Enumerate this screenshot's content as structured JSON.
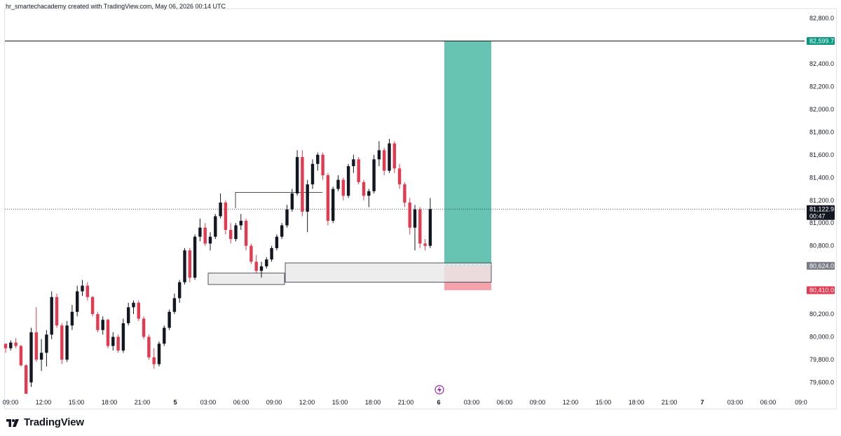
{
  "header": {
    "caption": "hr_smartechacademy created with TradingView.com, May 06, 2026 00:14 UTC"
  },
  "brand": {
    "name": "TradingView",
    "icon": "tradingview-logo-icon"
  },
  "icons": {
    "event_marker": "lightning-icon"
  },
  "colors": {
    "bull_body": "#131722",
    "bear_body": "#e53950",
    "target_zone": "#68c4b2",
    "stop_zone": "#f4a3ab",
    "target_tag": "#089981",
    "stop_tag": "#e53950",
    "entry_tag": "#787b86",
    "last_tag": "#131722",
    "box_fill": "#e8e8e8",
    "box_stroke": "#2a2e39"
  },
  "chart_data": {
    "type": "candlestick",
    "title": "",
    "xlabel": "",
    "ylabel": "",
    "ylim": [
      79480,
      82880
    ],
    "y_ticks": [
      "82,800.0",
      "82,400.0",
      "82,200.0",
      "82,000.0",
      "81,800.0",
      "81,600.0",
      "81,400.0",
      "81,200.0",
      "81,000.0",
      "80,800.0",
      "80,200.0",
      "80,000.0",
      "79,800.0",
      "79,600.0"
    ],
    "x_ticks": [
      "09:00",
      "12:00",
      "15:00",
      "18:00",
      "21:00",
      "5",
      "03:00",
      "06:00",
      "09:00",
      "12:00",
      "15:00",
      "18:00",
      "21:00",
      "6",
      "03:00",
      "06:00",
      "09:00",
      "12:00",
      "15:00",
      "18:00",
      "21:00",
      "7",
      "03:00",
      "06:00",
      "09:0"
    ],
    "price_tags": {
      "target": "82,599.7",
      "last_price": "81,122.9",
      "countdown": "00:47",
      "entry": "80,624.0",
      "stop": "80,410.0"
    },
    "levels": {
      "target": 82599.7,
      "last": 81122.9,
      "entry": 80624.0,
      "stop": 80410.0
    },
    "zones": [
      {
        "name": "demand-zone-1",
        "top": 80560,
        "bottom": 80460
      },
      {
        "name": "demand-zone-2",
        "top": 80650,
        "bottom": 80480
      }
    ],
    "resistance_line": 81270,
    "candles": [
      [
        79940,
        79920,
        79860,
        79900
      ],
      [
        79900,
        79970,
        79880,
        79950
      ],
      [
        79950,
        79990,
        79900,
        79920
      ],
      [
        79920,
        79930,
        79740,
        79750
      ],
      [
        79750,
        79760,
        79500,
        79500
      ],
      [
        79600,
        80080,
        79560,
        80040
      ],
      [
        80040,
        80260,
        79780,
        79800
      ],
      [
        79800,
        79980,
        79700,
        79860
      ],
      [
        79860,
        80060,
        79740,
        80020
      ],
      [
        80020,
        80400,
        79980,
        80350
      ],
      [
        80350,
        80380,
        80080,
        80100
      ],
      [
        80100,
        80120,
        79760,
        79800
      ],
      [
        79800,
        80140,
        79780,
        80100
      ],
      [
        80100,
        80280,
        80060,
        80220
      ],
      [
        80220,
        80450,
        80180,
        80400
      ],
      [
        80400,
        80500,
        80360,
        80450
      ],
      [
        80450,
        80480,
        80320,
        80350
      ],
      [
        80350,
        80360,
        80180,
        80200
      ],
      [
        80200,
        80220,
        80040,
        80060
      ],
      [
        80060,
        80180,
        80020,
        80150
      ],
      [
        80150,
        80160,
        79900,
        79920
      ],
      [
        79920,
        80040,
        79880,
        80000
      ],
      [
        80000,
        80020,
        79860,
        79880
      ],
      [
        79880,
        80160,
        79860,
        80120
      ],
      [
        80120,
        80300,
        80100,
        80260
      ],
      [
        80260,
        80320,
        80200,
        80300
      ],
      [
        80300,
        80320,
        80140,
        80160
      ],
      [
        80160,
        80180,
        79980,
        80000
      ],
      [
        80000,
        80020,
        79800,
        79820
      ],
      [
        79820,
        79900,
        79720,
        79760
      ],
      [
        79760,
        79960,
        79740,
        79940
      ],
      [
        79940,
        80100,
        79920,
        80080
      ],
      [
        80080,
        80240,
        80060,
        80220
      ],
      [
        80220,
        80380,
        80200,
        80340
      ],
      [
        80340,
        80500,
        80300,
        80480
      ],
      [
        80480,
        80780,
        80460,
        80760
      ],
      [
        80760,
        80780,
        80480,
        80520
      ],
      [
        80520,
        80900,
        80500,
        80880
      ],
      [
        80880,
        81040,
        80840,
        80960
      ],
      [
        80960,
        81000,
        80800,
        80820
      ],
      [
        80820,
        80920,
        80760,
        80880
      ],
      [
        80880,
        81080,
        80860,
        81060
      ],
      [
        81060,
        81260,
        81040,
        81180
      ],
      [
        81180,
        81200,
        80900,
        80940
      ],
      [
        80940,
        81000,
        80820,
        80860
      ],
      [
        80860,
        81000,
        80840,
        80980
      ],
      [
        80980,
        81080,
        80940,
        81020
      ],
      [
        81020,
        81040,
        80760,
        80800
      ],
      [
        80800,
        80820,
        80640,
        80660
      ],
      [
        80660,
        80720,
        80560,
        80580
      ],
      [
        80580,
        80660,
        80520,
        80620
      ],
      [
        80620,
        80700,
        80600,
        80680
      ],
      [
        80680,
        80800,
        80660,
        80780
      ],
      [
        80780,
        80900,
        80760,
        80880
      ],
      [
        80880,
        81000,
        80860,
        80980
      ],
      [
        80980,
        81160,
        80960,
        81120
      ],
      [
        81120,
        81300,
        81100,
        81260
      ],
      [
        81260,
        81640,
        81240,
        81580
      ],
      [
        81580,
        81640,
        81060,
        81100
      ],
      [
        81100,
        81380,
        80920,
        81340
      ],
      [
        81340,
        81560,
        81300,
        81520
      ],
      [
        81520,
        81620,
        81460,
        81600
      ],
      [
        81600,
        81620,
        81380,
        81420
      ],
      [
        81420,
        81440,
        80980,
        81020
      ],
      [
        81020,
        81320,
        81000,
        81300
      ],
      [
        81300,
        81420,
        81280,
        81380
      ],
      [
        81380,
        81400,
        81200,
        81240
      ],
      [
        81240,
        81520,
        81220,
        81500
      ],
      [
        81500,
        81600,
        81440,
        81560
      ],
      [
        81560,
        81580,
        81340,
        81360
      ],
      [
        81360,
        81380,
        81200,
        81240
      ],
      [
        81240,
        81300,
        81140,
        81280
      ],
      [
        81280,
        81600,
        81260,
        81560
      ],
      [
        81560,
        81720,
        81500,
        81640
      ],
      [
        81640,
        81660,
        81420,
        81460
      ],
      [
        81460,
        81740,
        81440,
        81700
      ],
      [
        81700,
        81720,
        81440,
        81480
      ],
      [
        81480,
        81520,
        81300,
        81340
      ],
      [
        81340,
        81360,
        81140,
        81180
      ],
      [
        81180,
        81220,
        80900,
        80960
      ],
      [
        80960,
        81160,
        80760,
        81120
      ],
      [
        81120,
        81140,
        80780,
        80820
      ],
      [
        80820,
        80860,
        80760,
        80800
      ],
      [
        80800,
        81220,
        80780,
        81122.9
      ]
    ]
  }
}
